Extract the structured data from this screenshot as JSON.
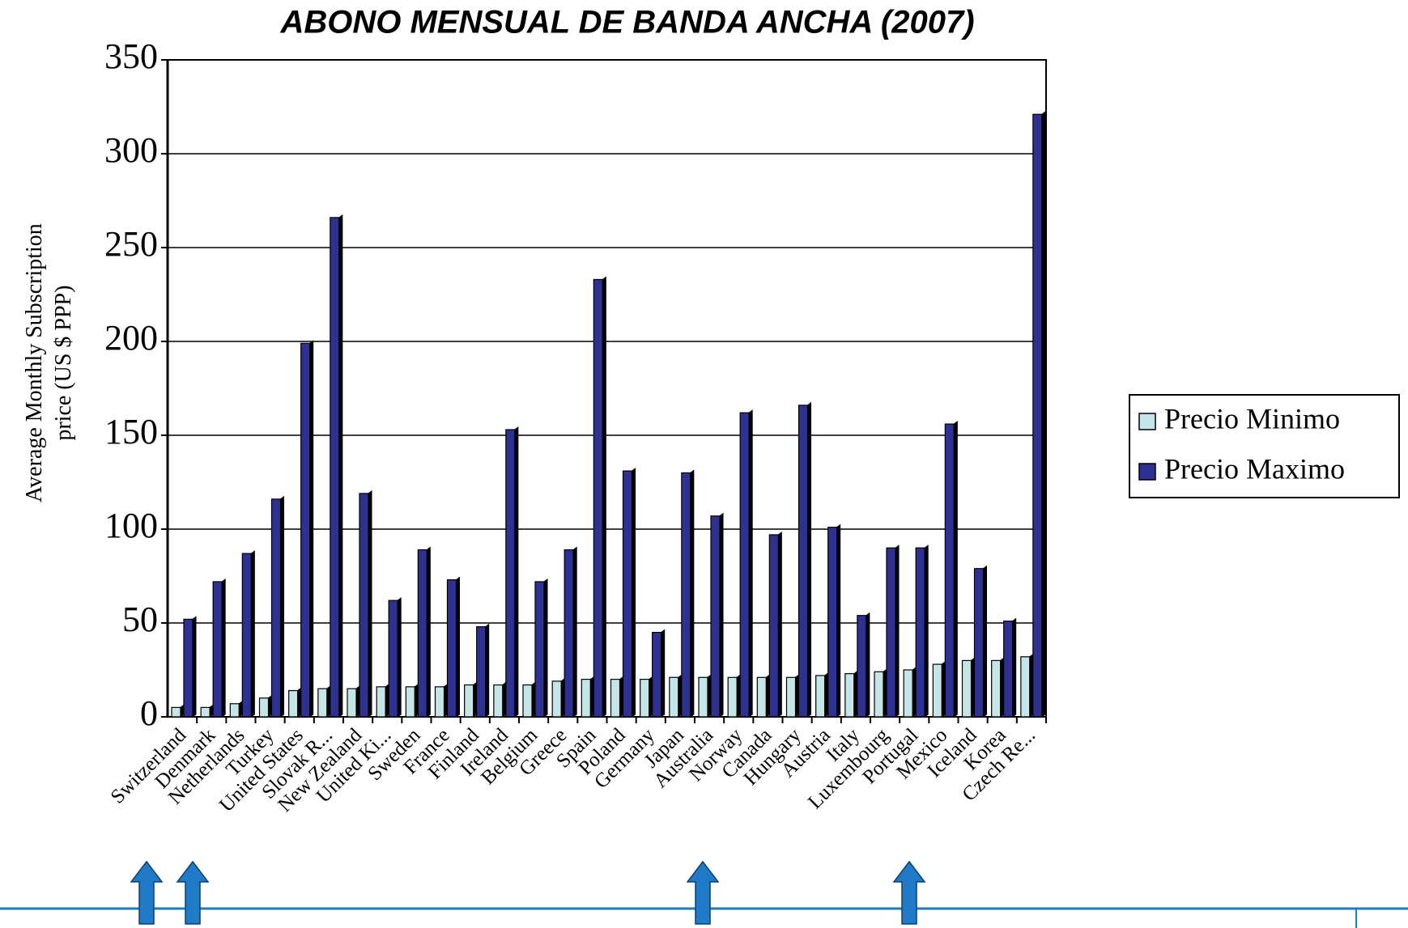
{
  "chart_data": {
    "type": "bar",
    "title": "ABONO MENSUAL DE BANDA ANCHA (2007)",
    "y_label": [
      "Average Monthly Subscription",
      "price (US $ PPP)"
    ],
    "categories": [
      "Switzerland",
      "Denmark",
      "Netherlands",
      "Turkey",
      "United States",
      "Slovak R...",
      "New Zealand",
      "United Ki...",
      "Sweden",
      "France",
      "Finland",
      "Ireland",
      "Belgium",
      "Greece",
      "Spain",
      "Poland",
      "Germany",
      "Japan",
      "Australia",
      "Norway",
      "Canada",
      "Hungary",
      "Austria",
      "Italy",
      "Luxembourg",
      "Portugal",
      "Mexico",
      "Iceland",
      "Korea",
      "Czech Re..."
    ],
    "series": [
      {
        "name": "Precio Minimo",
        "color": "#c4e6e8",
        "values": [
          5,
          5,
          7,
          10,
          14,
          15,
          15,
          16,
          16,
          16,
          17,
          17,
          17,
          19,
          20,
          20,
          20,
          21,
          21,
          21,
          21,
          21,
          22,
          23,
          24,
          25,
          28,
          30,
          30,
          32
        ]
      },
      {
        "name": "Precio Maximo",
        "color": "#2e3192",
        "values": [
          52,
          72,
          87,
          116,
          199,
          266,
          119,
          62,
          89,
          73,
          48,
          153,
          72,
          89,
          233,
          131,
          45,
          130,
          107,
          162,
          97,
          166,
          101,
          54,
          90,
          90,
          156,
          79,
          51,
          321
        ]
      }
    ],
    "ylim": [
      0,
      350
    ],
    "yticks": [
      0,
      50,
      100,
      150,
      200,
      250,
      300,
      350
    ],
    "grid": true,
    "legend": "right"
  }
}
